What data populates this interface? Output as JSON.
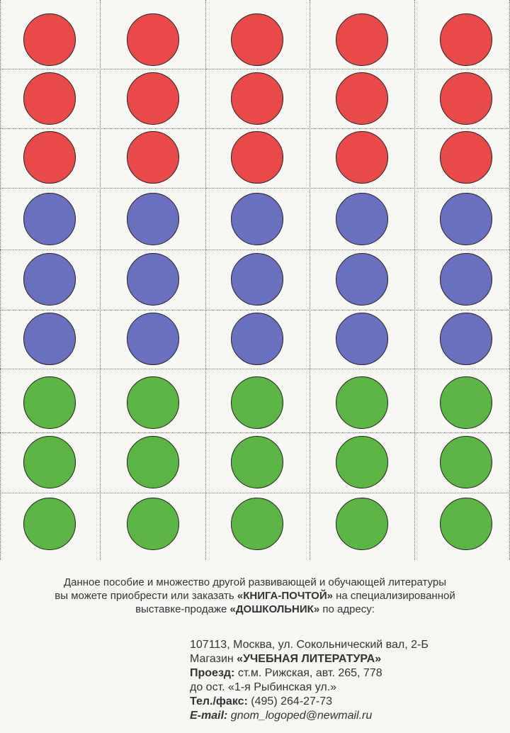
{
  "grid": {
    "columns": 5,
    "rows": [
      {
        "color": "#e84a4a"
      },
      {
        "color": "#e84a4a"
      },
      {
        "color": "#e84a4a"
      },
      {
        "color": "#6b6fc0"
      },
      {
        "color": "#6b6fc0"
      },
      {
        "color": "#6b6fc0"
      },
      {
        "color": "#5cb544"
      },
      {
        "color": "#5cb544"
      },
      {
        "color": "#5cb544"
      }
    ]
  },
  "info": {
    "line1": "Данное пособие и множество другой развивающей и обучающей литературы",
    "line2_pre": "вы можете приобрести или заказать ",
    "line2_bold": "«КНИГА-ПОЧТОЙ»",
    "line2_post": " на специализированной",
    "line3_pre": "выставке-продаже ",
    "line3_bold": "«ДОШКОЛЬНИК»",
    "line3_post": " по адресу:"
  },
  "address": {
    "line1": "107113, Москва, ул. Сокольнический вал, 2-Б",
    "shop_label": "Магазин ",
    "shop_name": "«УЧЕБНАЯ ЛИТЕРАТУРА»",
    "route_label": "Проезд:",
    "route_value": " ст.м. Рижская, авт. 265, 778",
    "route_stop": "до ост. «1-я Рыбинская ул.»",
    "phone_label": "Тел./факс:",
    "phone_value": " (495) 264-27-73",
    "email_label": "E-mail:",
    "email_value": " gnom_logoped@newmail.ru"
  }
}
